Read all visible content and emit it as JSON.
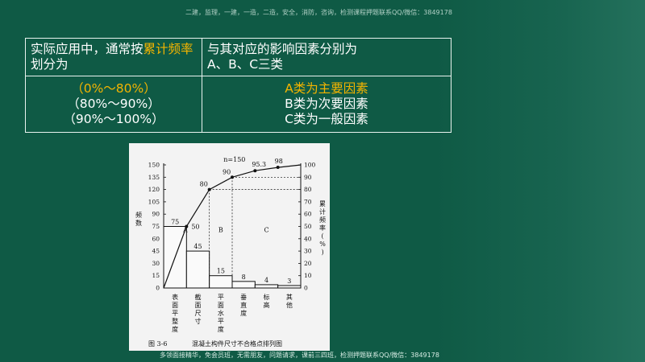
{
  "watermark_top": "二建，监理，一建，一造，二造，安全，消防，咨询，检测课程押题联系QQ/微信：3849178",
  "watermark_bottom": "多领面接精华，免会员班，无需朋友，问题请求，课前三四班，检测押题联系QQ/微信：3849178",
  "table": {
    "header_left_1": "实际应用中，通常按",
    "header_left_hl": "累计频率",
    "header_left_2": "划分为",
    "header_right_1": "与其对应的影响因素分别为",
    "header_right_2": "A、B、C三类",
    "ranges": [
      "（0%～80%）",
      "（80%～90%）",
      "（90%～100%）"
    ],
    "classes": [
      "A类为主要因素",
      "B类为次要因素",
      "C类为一般因素"
    ]
  },
  "colors": {
    "background": "#0f5a45",
    "highlight": "#f4b400",
    "text": "#ffffff"
  },
  "chart_data": {
    "type": "bar",
    "title": "混凝土构件尺寸不合格点排列图",
    "caption_prefix": "图 3-6",
    "categories": [
      "表面平整度",
      "截面尺寸",
      "平面水平度",
      "垂直度",
      "标高",
      "其他"
    ],
    "series": [
      {
        "name": "频数",
        "kind": "bar",
        "values": [
          75,
          45,
          15,
          8,
          4,
          3
        ]
      },
      {
        "name": "累计频率(%)",
        "kind": "line",
        "values": [
          50,
          80,
          90,
          95.3,
          98.0,
          100
        ]
      }
    ],
    "n_label": "n=150",
    "ylabel_left": "频数",
    "ylabel_right": "累计频率(%)",
    "left_ticks": [
      0,
      15,
      30,
      45,
      60,
      75,
      90,
      105,
      120,
      135,
      150
    ],
    "right_ticks": [
      0,
      10,
      20,
      30,
      40,
      50,
      60,
      70,
      80,
      90,
      100
    ],
    "ylim_left": [
      0,
      150
    ],
    "ylim_right": [
      0,
      100
    ],
    "zones": [
      "A",
      "B",
      "C"
    ]
  }
}
